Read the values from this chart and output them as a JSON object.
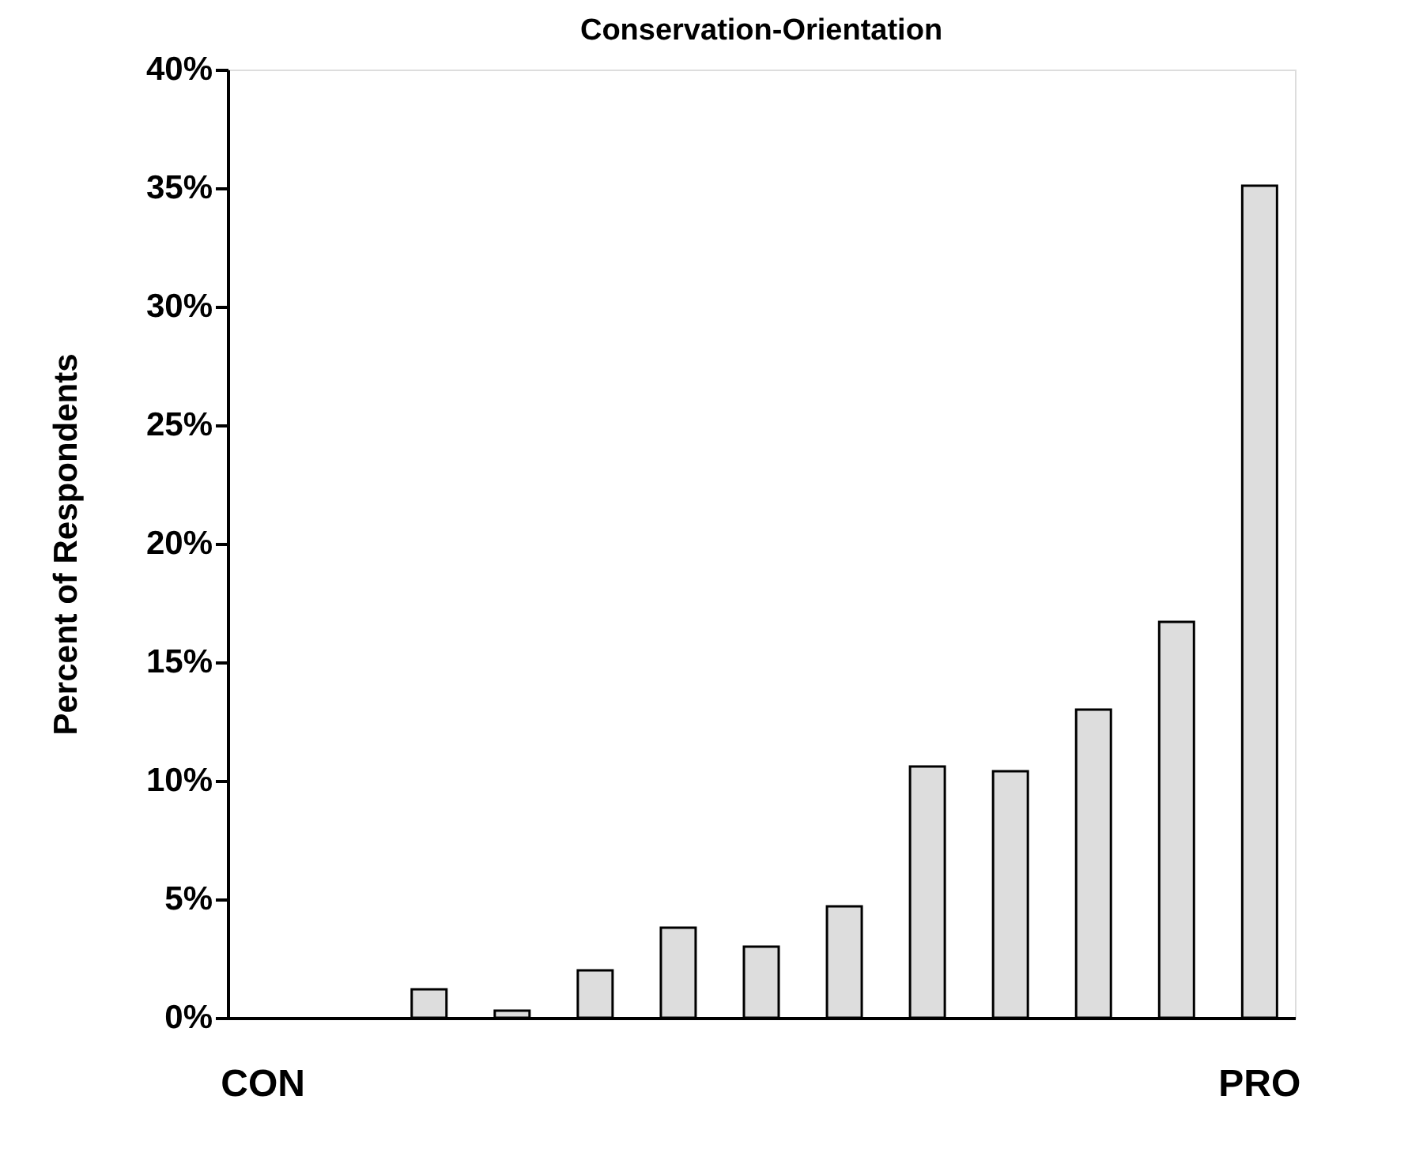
{
  "chart_data": {
    "type": "bar",
    "title": "Conservation-Orientation",
    "ylabel": "Percent of Respondents",
    "categories": [
      "CON",
      null,
      null,
      null,
      null,
      null,
      null,
      null,
      null,
      null,
      null,
      null,
      "PRO"
    ],
    "values": [
      null,
      null,
      1.2,
      0.3,
      2.0,
      3.8,
      3.0,
      4.7,
      10.6,
      10.4,
      13.0,
      16.7,
      35.1
    ],
    "color": "#dddddd",
    "ylim": [
      0,
      40
    ],
    "yticks": [
      {
        "value": 0,
        "label": "0%"
      },
      {
        "value": 5,
        "label": "5%"
      },
      {
        "value": 10,
        "label": "10%"
      },
      {
        "value": 15,
        "label": "15%"
      },
      {
        "value": 20,
        "label": "20%"
      },
      {
        "value": 25,
        "label": "25%"
      },
      {
        "value": 30,
        "label": "30%"
      },
      {
        "value": 35,
        "label": "35%"
      },
      {
        "value": 40,
        "label": "40%"
      }
    ],
    "grid": false
  }
}
